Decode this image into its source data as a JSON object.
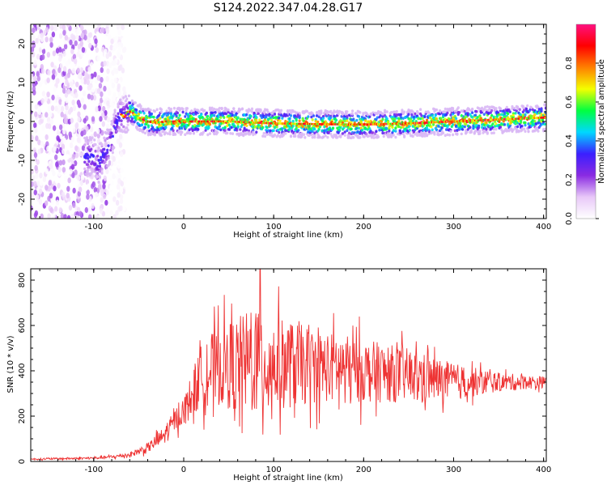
{
  "title": "S124.2022.347.04.28.G17",
  "chart_data": [
    {
      "type": "heatmap",
      "xlabel": "Height of straight line (km)",
      "ylabel": "Frequency (Hz)",
      "xlim": [
        -170,
        403
      ],
      "ylim": [
        -25,
        25
      ],
      "xticks": [
        -100,
        0,
        100,
        200,
        300,
        400
      ],
      "yticks": [
        -20,
        -10,
        0,
        10,
        20
      ],
      "colorbar": {
        "label": "Normalized spectral amplitude",
        "range": [
          0,
          1
        ],
        "ticks": [
          "0.0",
          "0.2",
          "0.4",
          "0.6",
          "0.8"
        ],
        "colormap": [
          "#ffffff",
          "#e8c8f8",
          "#8a2be2",
          "#3b1fff",
          "#00d8ff",
          "#00ff40",
          "#f4ff00",
          "#ff8000",
          "#ff0000",
          "#ff1080"
        ]
      },
      "ridge": {
        "x": [
          -100,
          -95,
          -88,
          -82,
          -78,
          -74,
          -70,
          -66,
          -62,
          -58,
          -55,
          -50,
          -45,
          -40,
          -30,
          -20,
          0,
          50,
          100,
          150,
          200,
          250,
          300,
          350,
          403
        ],
        "frequency": [
          -9,
          -11,
          -8,
          -6,
          -3,
          0,
          2,
          1,
          2.5,
          2.5,
          2,
          1,
          0.5,
          0,
          -0.3,
          0,
          0,
          0,
          -0.5,
          -0.7,
          -0.8,
          -0.5,
          0,
          0.5,
          1
        ]
      },
      "noise_region_x": [
        -170,
        -85
      ]
    },
    {
      "type": "line",
      "xlabel": "Height of straight line (km)",
      "ylabel": "SNR (10 * v/v)",
      "xlim": [
        -170,
        403
      ],
      "ylim": [
        0,
        850
      ],
      "xticks": [
        -100,
        0,
        100,
        200,
        300,
        400
      ],
      "yticks": [
        0,
        200,
        400,
        600,
        800
      ],
      "color": "#ee3333",
      "envelope": {
        "x": [
          -170,
          -100,
          -80,
          -60,
          -40,
          -20,
          -10,
          0,
          10,
          20,
          40,
          60,
          80,
          90,
          100,
          150,
          200,
          250,
          300,
          350,
          403
        ],
        "mean": [
          10,
          15,
          20,
          30,
          60,
          120,
          180,
          220,
          300,
          380,
          420,
          430,
          440,
          440,
          430,
          420,
          400,
          380,
          350,
          350,
          350
        ],
        "amplitude": [
          5,
          8,
          10,
          15,
          30,
          60,
          70,
          90,
          150,
          200,
          250,
          300,
          350,
          380,
          300,
          230,
          200,
          170,
          120,
          60,
          35
        ]
      },
      "peak": {
        "x": 85,
        "y": 850
      }
    }
  ]
}
